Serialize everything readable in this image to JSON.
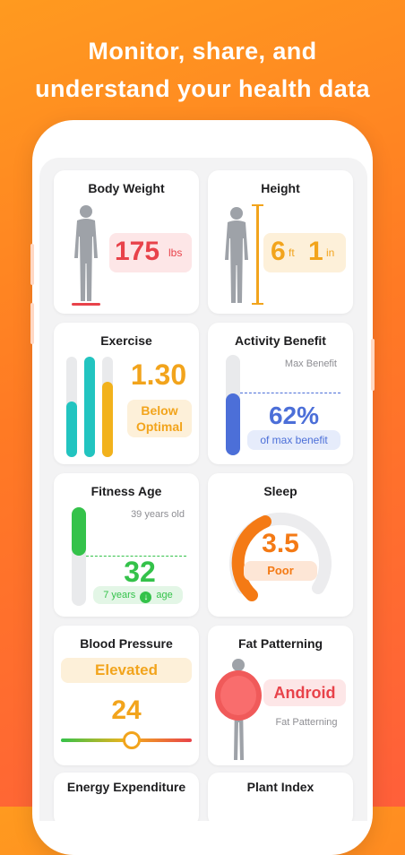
{
  "headline": {
    "line1": "Monitor, share, and",
    "line2": "understand your health data"
  },
  "cards": {
    "body_weight": {
      "title": "Body Weight",
      "value": "175",
      "unit": "lbs"
    },
    "height": {
      "title": "Height",
      "feet": "6",
      "feet_unit": "ft",
      "inches": "1",
      "inches_unit": "in"
    },
    "exercise": {
      "title": "Exercise",
      "value": "1.30",
      "status_line1": "Below",
      "status_line2": "Optimal",
      "bar_levels": [
        0.55,
        1.0,
        0.75
      ]
    },
    "activity_benefit": {
      "title": "Activity Benefit",
      "max_label": "Max Benefit",
      "value": "62%",
      "caption": "of max benefit",
      "fill": 0.62
    },
    "fitness_age": {
      "title": "Fitness Age",
      "reference": "39 years old",
      "value": "32",
      "delta_text": "7 years",
      "delta_suffix": "age"
    },
    "sleep": {
      "title": "Sleep",
      "value": "3.5",
      "status": "Poor"
    },
    "blood_pressure": {
      "title": "Blood Pressure",
      "status": "Elevated",
      "value": "24"
    },
    "fat_patterning": {
      "title": "Fat Patterning",
      "type": "Android",
      "caption": "Fat Patterning"
    },
    "energy_expenditure": {
      "title": "Energy Expenditure"
    },
    "plant_index": {
      "title": "Plant Index"
    }
  },
  "colors": {
    "red": "#e8424a",
    "orange": "#f2a41c",
    "green": "#34c24a",
    "blue": "#4c6fd8",
    "teal": "#22c4c0",
    "sleep_orange": "#f47a15"
  }
}
